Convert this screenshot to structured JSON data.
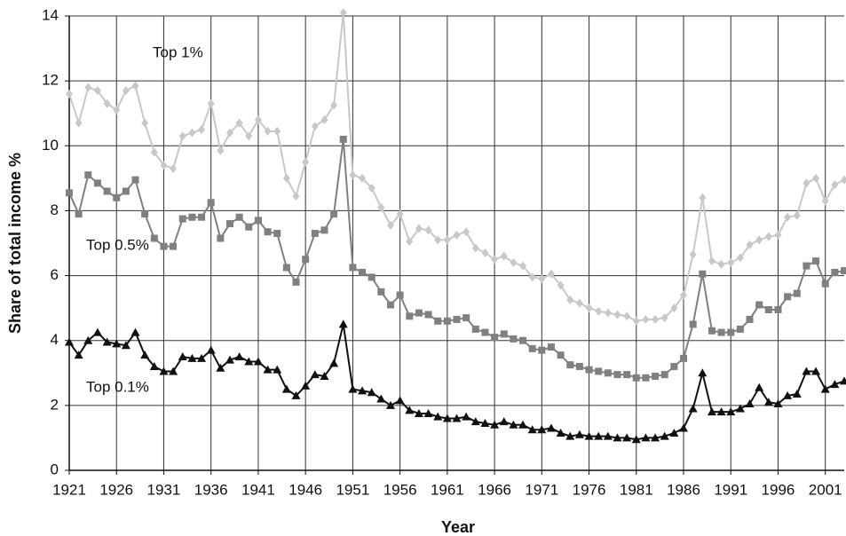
{
  "chart_data": {
    "type": "line",
    "x_label": "Year",
    "y_label": "Share of total income %",
    "x": [
      1921,
      1922,
      1923,
      1924,
      1925,
      1926,
      1927,
      1928,
      1929,
      1930,
      1931,
      1932,
      1933,
      1934,
      1935,
      1936,
      1937,
      1938,
      1939,
      1940,
      1941,
      1942,
      1943,
      1944,
      1945,
      1946,
      1947,
      1948,
      1949,
      1950,
      1951,
      1952,
      1953,
      1954,
      1955,
      1956,
      1957,
      1958,
      1959,
      1960,
      1961,
      1962,
      1963,
      1964,
      1965,
      1966,
      1967,
      1968,
      1969,
      1970,
      1971,
      1972,
      1973,
      1974,
      1975,
      1976,
      1977,
      1978,
      1979,
      1980,
      1981,
      1982,
      1983,
      1984,
      1985,
      1986,
      1987,
      1988,
      1989,
      1990,
      1991,
      1992,
      1993,
      1994,
      1995,
      1996,
      1997,
      1998,
      1999,
      2000,
      2001,
      2002,
      2003
    ],
    "series": [
      {
        "name": "Top 1%",
        "color": "#c8c8c8",
        "marker": "diamond",
        "values": [
          11.6,
          10.7,
          11.8,
          11.7,
          11.3,
          11.1,
          11.7,
          11.85,
          10.7,
          9.8,
          9.4,
          9.3,
          10.3,
          10.4,
          10.5,
          11.3,
          9.85,
          10.4,
          10.7,
          10.3,
          10.8,
          10.45,
          10.45,
          9.0,
          8.45,
          9.5,
          10.6,
          10.8,
          11.25,
          14.1,
          9.1,
          9.0,
          8.7,
          8.1,
          7.55,
          7.9,
          7.05,
          7.45,
          7.4,
          7.1,
          7.1,
          7.25,
          7.35,
          6.85,
          6.7,
          6.5,
          6.6,
          6.4,
          6.3,
          5.95,
          5.9,
          6.05,
          5.7,
          5.25,
          5.15,
          5.0,
          4.9,
          4.85,
          4.8,
          4.75,
          4.6,
          4.65,
          4.65,
          4.7,
          5.0,
          5.4,
          6.65,
          8.4,
          6.45,
          6.35,
          6.4,
          6.55,
          6.95,
          7.1,
          7.2,
          7.25,
          7.8,
          7.85,
          8.85,
          9.0,
          8.3,
          8.8,
          8.95
        ]
      },
      {
        "name": "Top 0.5%",
        "color": "#808080",
        "marker": "square",
        "values": [
          8.55,
          7.9,
          9.1,
          8.85,
          8.6,
          8.4,
          8.6,
          8.95,
          7.9,
          7.15,
          6.9,
          6.9,
          7.75,
          7.8,
          7.8,
          8.25,
          7.15,
          7.6,
          7.8,
          7.5,
          7.7,
          7.35,
          7.3,
          6.25,
          5.8,
          6.5,
          7.3,
          7.4,
          7.9,
          10.2,
          6.25,
          6.1,
          5.95,
          5.5,
          5.1,
          5.4,
          4.75,
          4.85,
          4.8,
          4.6,
          4.6,
          4.65,
          4.7,
          4.35,
          4.25,
          4.1,
          4.2,
          4.05,
          4.0,
          3.75,
          3.7,
          3.8,
          3.55,
          3.25,
          3.2,
          3.1,
          3.05,
          3.0,
          2.95,
          2.95,
          2.85,
          2.85,
          2.9,
          2.95,
          3.2,
          3.45,
          4.5,
          6.05,
          4.3,
          4.25,
          4.25,
          4.35,
          4.65,
          5.1,
          4.95,
          4.95,
          5.35,
          5.45,
          6.3,
          6.45,
          5.75,
          6.1,
          6.15
        ]
      },
      {
        "name": "Top 0.1%",
        "color": "#111111",
        "marker": "triangle",
        "values": [
          3.95,
          3.55,
          4.0,
          4.25,
          3.95,
          3.9,
          3.85,
          4.25,
          3.55,
          3.2,
          3.05,
          3.05,
          3.5,
          3.45,
          3.45,
          3.7,
          3.15,
          3.4,
          3.5,
          3.35,
          3.35,
          3.1,
          3.1,
          2.5,
          2.3,
          2.6,
          2.95,
          2.9,
          3.3,
          4.5,
          2.5,
          2.45,
          2.4,
          2.2,
          2.0,
          2.15,
          1.85,
          1.75,
          1.75,
          1.65,
          1.6,
          1.6,
          1.65,
          1.5,
          1.45,
          1.4,
          1.5,
          1.4,
          1.4,
          1.25,
          1.25,
          1.3,
          1.15,
          1.05,
          1.1,
          1.05,
          1.05,
          1.05,
          1.0,
          1.0,
          0.95,
          1.0,
          1.0,
          1.05,
          1.15,
          1.3,
          1.9,
          3.0,
          1.8,
          1.8,
          1.8,
          1.9,
          2.05,
          2.55,
          2.1,
          2.05,
          2.3,
          2.35,
          3.05,
          3.05,
          2.5,
          2.65,
          2.75
        ]
      }
    ],
    "xlim": [
      1921,
      2003
    ],
    "xticks": [
      1921,
      1926,
      1931,
      1936,
      1941,
      1946,
      1951,
      1956,
      1961,
      1966,
      1971,
      1976,
      1981,
      1986,
      1991,
      1996,
      2001
    ],
    "ylim": [
      0,
      14
    ],
    "yticks": [
      0,
      2,
      4,
      6,
      8,
      10,
      12,
      14
    ],
    "grid": true
  }
}
